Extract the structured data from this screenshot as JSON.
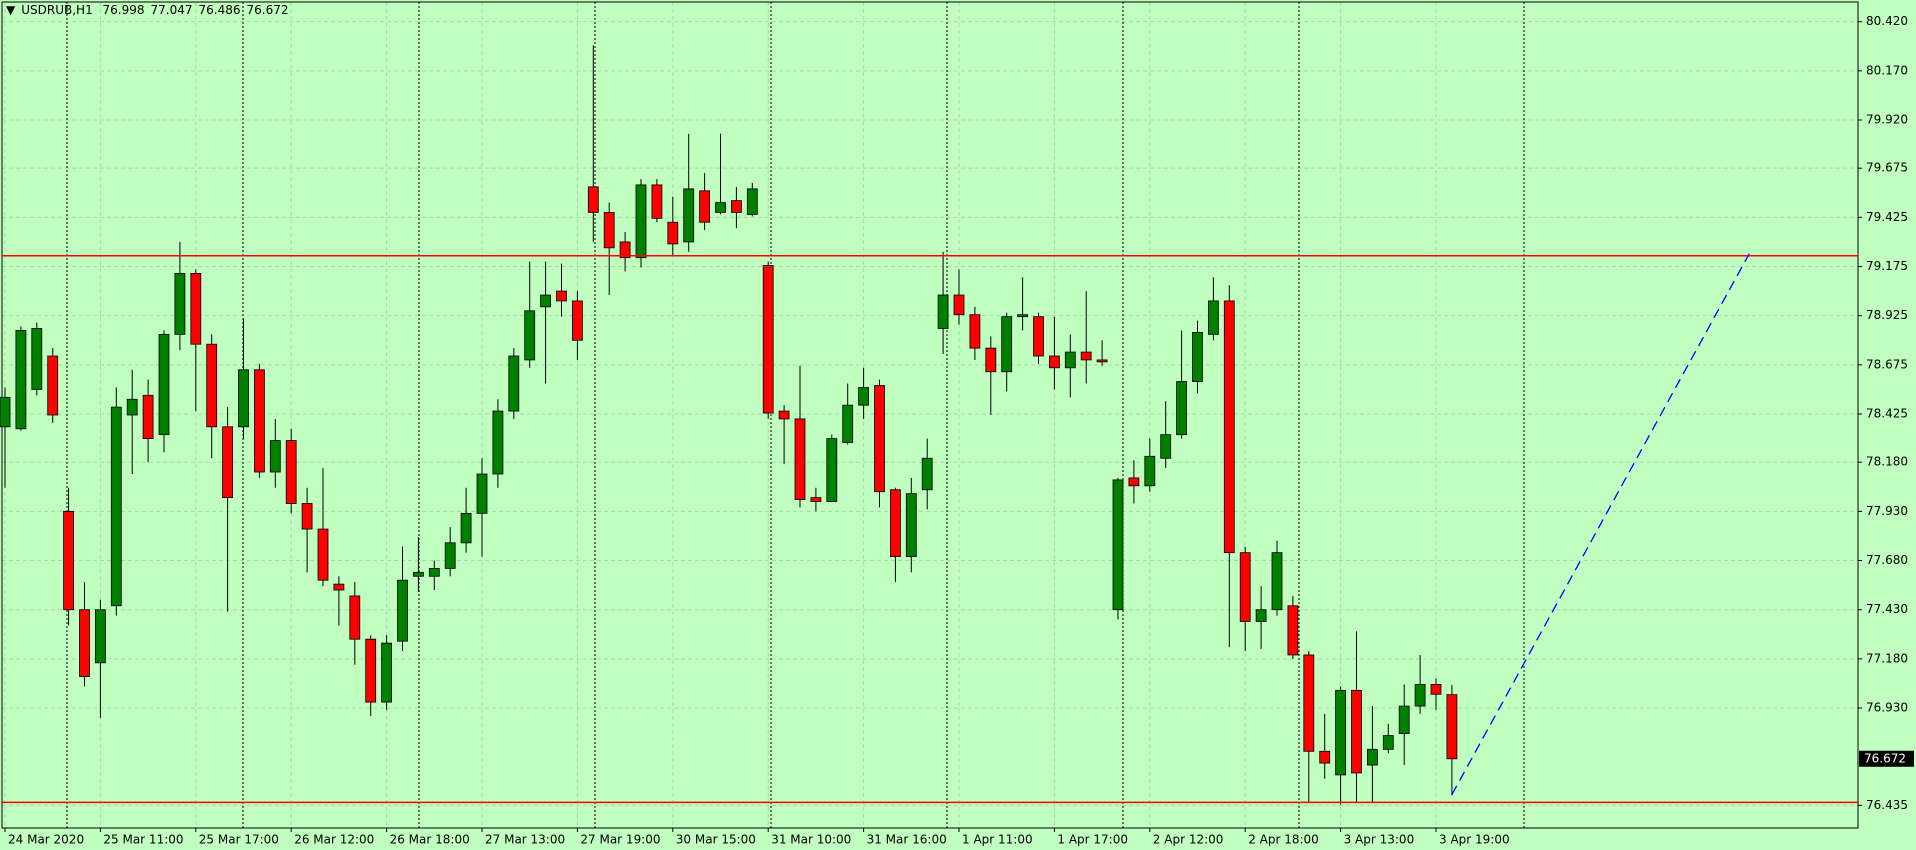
{
  "chart_data": {
    "type": "candlestick",
    "title": "USDRUB,H1",
    "categories": [
      "24 Mar 2020",
      null,
      null,
      null,
      null,
      null,
      "25 Mar 11:00",
      null,
      null,
      null,
      null,
      null,
      "25 Mar 17:00",
      null,
      null,
      null,
      null,
      null,
      "26 Mar 12:00",
      null,
      null,
      null,
      null,
      null,
      "26 Mar 18:00",
      null,
      null,
      null,
      null,
      null,
      "27 Mar 13:00",
      null,
      null,
      null,
      null,
      null,
      "27 Mar 19:00",
      null,
      null,
      null,
      null,
      null,
      "30 Mar 15:00",
      null,
      null,
      null,
      null,
      null,
      "31 Mar 10:00",
      null,
      null,
      null,
      null,
      null,
      "31 Mar 16:00",
      null,
      null,
      null,
      null,
      null,
      "1 Apr 11:00",
      null,
      null,
      null,
      null,
      null,
      "1 Apr 17:00",
      null,
      null,
      null,
      null,
      null,
      "2 Apr 12:00",
      null,
      null,
      null,
      null,
      null,
      "2 Apr 18:00",
      null,
      null,
      null,
      null,
      null,
      "3 Apr 13:00",
      null,
      null,
      null,
      null,
      null,
      "3 Apr 19:00",
      null
    ],
    "open": [
      78.36,
      78.35,
      78.55,
      78.72,
      77.93,
      77.43,
      77.16,
      77.45,
      78.42,
      78.52,
      78.32,
      78.83,
      79.14,
      78.78,
      78.36,
      78.36,
      78.65,
      78.13,
      78.29,
      77.97,
      77.84,
      77.56,
      77.5,
      77.28,
      76.96,
      77.27,
      77.6,
      77.6,
      77.64,
      77.77,
      77.92,
      78.12,
      78.44,
      78.7,
      78.97,
      79.05,
      79.0,
      79.58,
      79.45,
      79.3,
      79.22,
      79.59,
      79.4,
      79.3,
      79.56,
      79.45,
      79.51,
      79.44,
      79.18,
      78.44,
      78.4,
      78.0,
      77.98,
      78.28,
      78.47,
      78.57,
      78.04,
      77.7,
      78.04,
      78.86,
      79.03,
      78.93,
      78.76,
      78.64,
      78.92,
      78.92,
      78.72,
      78.66,
      78.74,
      78.7,
      77.43,
      78.1,
      78.06,
      78.2,
      78.32,
      78.59,
      78.83,
      79.0,
      77.72,
      77.37,
      77.43,
      77.45,
      77.2,
      76.71,
      76.59,
      77.02,
      76.64,
      76.72,
      76.8,
      76.94,
      77.05,
      76.998
    ],
    "high": [
      78.56,
      78.87,
      78.89,
      78.76,
      78.05,
      77.57,
      77.48,
      78.56,
      78.65,
      78.6,
      78.85,
      79.3,
      79.16,
      78.83,
      78.46,
      78.91,
      78.68,
      78.4,
      78.35,
      78.05,
      78.15,
      77.6,
      77.57,
      77.3,
      77.3,
      77.75,
      77.8,
      77.68,
      77.85,
      78.05,
      78.2,
      78.5,
      78.76,
      79.2,
      79.2,
      79.19,
      79.05,
      80.3,
      79.5,
      79.35,
      79.62,
      79.62,
      79.53,
      79.85,
      79.65,
      79.85,
      79.58,
      79.6,
      79.2,
      78.47,
      78.67,
      78.05,
      78.32,
      78.58,
      78.66,
      78.6,
      78.05,
      78.1,
      78.3,
      79.25,
      79.16,
      78.97,
      78.82,
      78.94,
      79.12,
      78.94,
      78.92,
      78.83,
      79.05,
      78.8,
      78.1,
      78.19,
      78.3,
      78.49,
      78.85,
      78.9,
      79.12,
      79.08,
      77.75,
      77.55,
      77.78,
      77.5,
      77.22,
      76.9,
      77.04,
      77.32,
      76.94,
      76.85,
      77.05,
      77.2,
      77.08,
      77.047
    ],
    "low": [
      78.05,
      78.34,
      78.52,
      78.38,
      77.35,
      77.04,
      76.88,
      77.4,
      78.12,
      78.18,
      78.23,
      78.75,
      78.44,
      78.2,
      77.42,
      78.3,
      78.1,
      78.05,
      77.92,
      77.62,
      77.55,
      77.35,
      77.15,
      76.89,
      76.92,
      77.22,
      77.52,
      77.53,
      77.6,
      77.72,
      77.7,
      78.05,
      78.4,
      78.66,
      78.58,
      78.92,
      78.7,
      79.3,
      79.03,
      79.15,
      79.17,
      79.4,
      79.23,
      79.25,
      79.36,
      79.44,
      79.37,
      79.43,
      78.4,
      78.17,
      77.95,
      77.93,
      77.98,
      78.27,
      78.4,
      77.95,
      77.57,
      77.62,
      77.94,
      78.73,
      78.88,
      78.7,
      78.42,
      78.54,
      78.85,
      78.68,
      78.55,
      78.51,
      78.58,
      78.67,
      77.38,
      77.97,
      78.03,
      78.15,
      78.3,
      78.53,
      78.8,
      77.24,
      77.22,
      77.23,
      77.4,
      77.18,
      76.45,
      76.57,
      76.44,
      76.45,
      76.45,
      76.7,
      76.64,
      76.9,
      76.92,
      76.486
    ],
    "close": [
      78.51,
      78.85,
      78.86,
      78.42,
      77.43,
      77.09,
      77.43,
      78.46,
      78.5,
      78.3,
      78.83,
      79.14,
      78.78,
      78.36,
      78.0,
      78.65,
      78.13,
      78.29,
      77.97,
      77.84,
      77.58,
      77.53,
      77.28,
      76.96,
      77.26,
      77.58,
      77.62,
      77.64,
      77.77,
      77.92,
      78.12,
      78.44,
      78.72,
      78.95,
      79.03,
      79.0,
      78.8,
      79.45,
      79.27,
      79.22,
      79.59,
      79.42,
      79.29,
      79.57,
      79.4,
      79.5,
      79.45,
      79.57,
      78.43,
      78.4,
      77.99,
      77.98,
      78.3,
      78.47,
      78.56,
      78.03,
      77.7,
      78.02,
      78.2,
      79.03,
      78.93,
      78.76,
      78.64,
      78.92,
      78.93,
      78.72,
      78.66,
      78.74,
      78.7,
      78.69,
      78.09,
      78.06,
      78.21,
      78.32,
      78.59,
      78.84,
      79.0,
      77.72,
      77.37,
      77.43,
      77.72,
      77.2,
      76.71,
      76.65,
      77.02,
      76.6,
      76.72,
      76.79,
      76.94,
      77.05,
      77.0,
      76.672
    ],
    "up_color": "#008000",
    "down_color": "#ff0000",
    "ylim": [
      76.32,
      80.52
    ],
    "yticks": [
      {
        "value": 80.42,
        "label": "80.420"
      },
      {
        "value": 80.17,
        "label": "80.170"
      },
      {
        "value": 79.92,
        "label": "79.920"
      },
      79.675,
      79.425,
      79.175,
      78.925,
      78.675,
      78.425,
      {
        "value": 78.18,
        "label": "78.180"
      },
      {
        "value": 77.93,
        "label": "77.930"
      },
      {
        "value": 77.68,
        "label": "77.680"
      },
      {
        "value": 77.43,
        "label": "77.430"
      },
      {
        "value": 77.18,
        "label": "77.180"
      },
      {
        "value": 76.93,
        "label": "76.930"
      },
      76.435
    ],
    "grid": true,
    "hlines": [
      79.23,
      76.45
    ],
    "hline_color": "#ff0000",
    "trendline": {
      "x": [
        91,
        109.7
      ],
      "y": [
        76.49,
        79.24
      ],
      "color": "#0000ff"
    }
  }
}
